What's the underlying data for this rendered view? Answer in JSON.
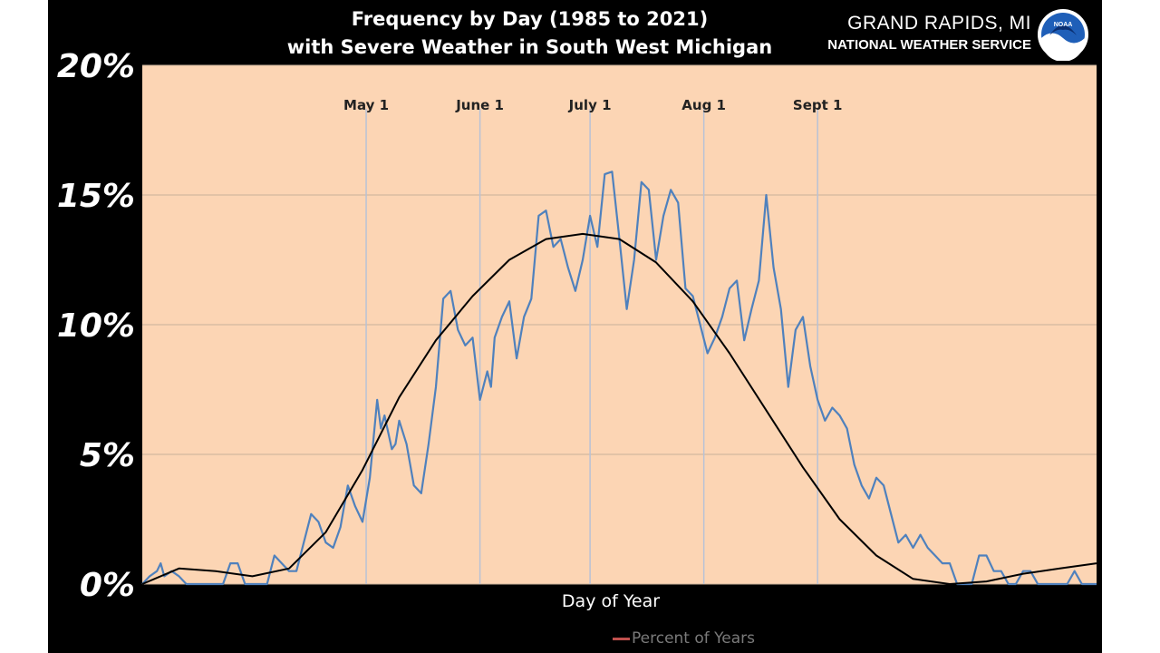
{
  "header": {
    "title_line1": "Frequency by Day (1985 to 2021)",
    "title_line2": "with Severe Weather in South West Michigan",
    "office_line1": "GRAND RAPIDS, MI",
    "office_line2": "NATIONAL WEATHER SERVICE",
    "logo_text": "NOAA"
  },
  "colors": {
    "plot_bg": "#fcd5b4",
    "panel_bg": "#000000",
    "daily_series": "#4f81bd",
    "trend_line": "#000000",
    "legend_swatch": "#c0504d"
  },
  "chart_data": {
    "type": "line",
    "xlabel": "Day of Year",
    "ylabel": "",
    "ylim": [
      0,
      20
    ],
    "xlim": [
      60,
      320
    ],
    "y_unit": "%",
    "yticks": [
      0,
      5,
      10,
      15,
      20
    ],
    "ytick_labels": [
      "0%",
      "5%",
      "10%",
      "15%",
      "20%"
    ],
    "grid": true,
    "legend": {
      "position": "bottom",
      "entries": [
        "Percent of Years"
      ]
    },
    "month_markers": [
      {
        "label": "May 1",
        "day": 121
      },
      {
        "label": "June 1",
        "day": 152
      },
      {
        "label": "July 1",
        "day": 182
      },
      {
        "label": "Aug 1",
        "day": 213
      },
      {
        "label": "Sept 1",
        "day": 244
      }
    ],
    "series": [
      {
        "x": [
          60,
          62,
          64,
          65,
          66,
          68,
          70,
          72,
          74,
          76,
          78,
          80,
          82,
          84,
          86,
          88,
          90,
          92,
          94,
          96,
          98,
          100,
          102,
          104,
          106,
          108,
          110,
          112,
          114,
          116,
          118,
          120,
          122,
          124,
          125,
          126,
          128,
          129,
          130,
          132,
          134,
          136,
          138,
          140,
          142,
          144,
          146,
          148,
          150,
          152,
          154,
          155,
          156,
          158,
          160,
          162,
          164,
          166,
          168,
          170,
          172,
          174,
          176,
          178,
          180,
          182,
          184,
          186,
          188,
          190,
          192,
          194,
          196,
          198,
          200,
          202,
          204,
          206,
          208,
          210,
          212,
          214,
          216,
          218,
          220,
          222,
          224,
          226,
          228,
          230,
          232,
          234,
          236,
          238,
          240,
          242,
          244,
          246,
          248,
          250,
          252,
          254,
          256,
          258,
          260,
          262,
          264,
          266,
          268,
          270,
          272,
          274,
          276,
          278,
          280,
          282,
          284,
          286,
          288,
          290,
          292,
          294,
          296,
          298,
          300,
          302,
          304,
          306,
          308,
          310,
          312,
          314,
          316,
          318,
          320
        ],
        "values": [
          0.0,
          0.3,
          0.5,
          0.8,
          0.3,
          0.5,
          0.3,
          0.0,
          0.0,
          0.0,
          0.0,
          0.0,
          0.0,
          0.8,
          0.8,
          0.0,
          0.0,
          0.0,
          0.0,
          1.1,
          0.8,
          0.5,
          0.5,
          1.6,
          2.7,
          2.4,
          1.6,
          1.4,
          2.2,
          3.8,
          3.0,
          2.4,
          4.1,
          7.1,
          6.0,
          6.5,
          5.2,
          5.4,
          6.3,
          5.4,
          3.8,
          3.5,
          5.4,
          7.6,
          11.0,
          11.3,
          9.8,
          9.2,
          9.5,
          7.1,
          8.2,
          7.6,
          9.5,
          10.3,
          10.9,
          8.7,
          10.3,
          11.0,
          14.2,
          14.4,
          13.0,
          13.3,
          12.2,
          11.3,
          12.5,
          14.2,
          13.0,
          15.8,
          15.9,
          13.3,
          10.6,
          12.5,
          15.5,
          15.2,
          12.5,
          14.2,
          15.2,
          14.7,
          11.4,
          11.1,
          10.0,
          8.9,
          9.5,
          10.3,
          11.4,
          11.7,
          9.4,
          10.6,
          11.7,
          15.0,
          12.2,
          10.6,
          7.6,
          9.8,
          10.3,
          8.4,
          7.1,
          6.3,
          6.8,
          6.5,
          6.0,
          4.6,
          3.8,
          3.3,
          4.1,
          3.8,
          2.7,
          1.6,
          1.9,
          1.4,
          1.9,
          1.4,
          1.1,
          0.8,
          0.8,
          0.0,
          0.0,
          0.0,
          1.1,
          1.1,
          0.5,
          0.5,
          0.0,
          0.0,
          0.5,
          0.5,
          0.0,
          0.0,
          0.0,
          0.0,
          0.0,
          0.5,
          0.0,
          0.0,
          0.0
        ]
      },
      {
        "x": [
          60,
          70,
          80,
          90,
          100,
          110,
          120,
          130,
          140,
          150,
          160,
          170,
          180,
          190,
          200,
          210,
          220,
          230,
          240,
          250,
          260,
          270,
          280,
          290,
          300,
          310,
          320
        ],
        "values": [
          0.0,
          0.6,
          0.5,
          0.3,
          0.6,
          2.0,
          4.4,
          7.2,
          9.4,
          11.1,
          12.5,
          13.3,
          13.5,
          13.3,
          12.4,
          10.9,
          8.9,
          6.7,
          4.5,
          2.5,
          1.1,
          0.2,
          0.0,
          0.1,
          0.4,
          0.6,
          0.8
        ]
      }
    ]
  }
}
